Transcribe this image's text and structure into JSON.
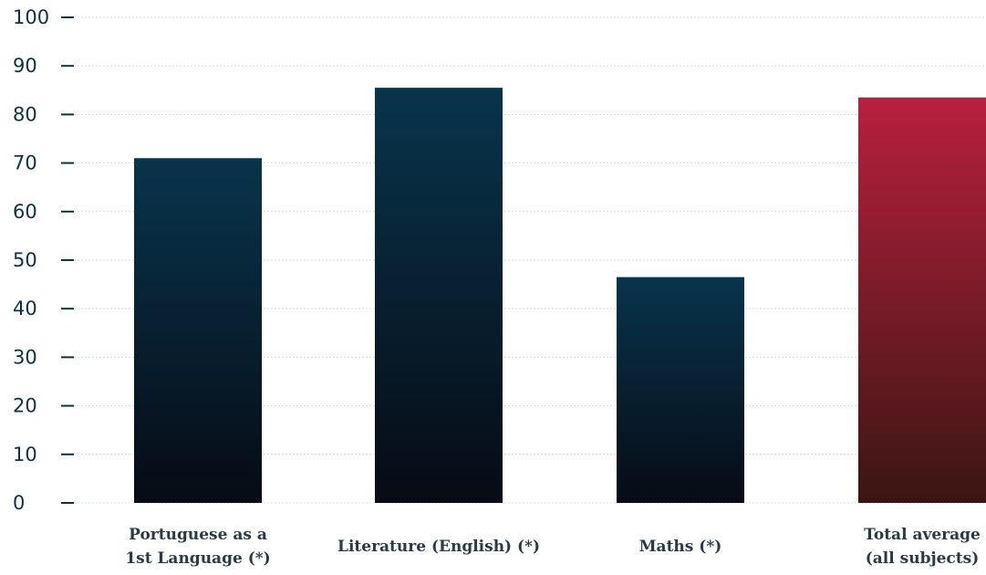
{
  "chart_data": {
    "type": "bar",
    "categories": [
      [
        "Portuguese as a",
        "1st Language (*)"
      ],
      [
        "Literature (English) (*)"
      ],
      [
        "Maths (*)"
      ],
      [
        "Total average",
        "(all subjects)"
      ]
    ],
    "values": [
      71,
      85.5,
      46.5,
      83.5
    ],
    "bar_styles": [
      "navy",
      "navy",
      "navy",
      "crimson"
    ],
    "title": "",
    "xlabel": "",
    "ylabel": "",
    "ylim": [
      0,
      100
    ],
    "yticks": [
      0,
      10,
      20,
      30,
      40,
      50,
      60,
      70,
      80,
      90,
      100
    ],
    "grid": true,
    "legend": "none",
    "colors": {
      "navy_top": "#08344c",
      "navy_bottom": "#070b14",
      "crimson_top": "#b8203f",
      "crimson_bottom": "#3a1612",
      "axis_text": "#0f3140",
      "category_text": "#2a3a44",
      "grid": "#d6dbe0"
    }
  }
}
